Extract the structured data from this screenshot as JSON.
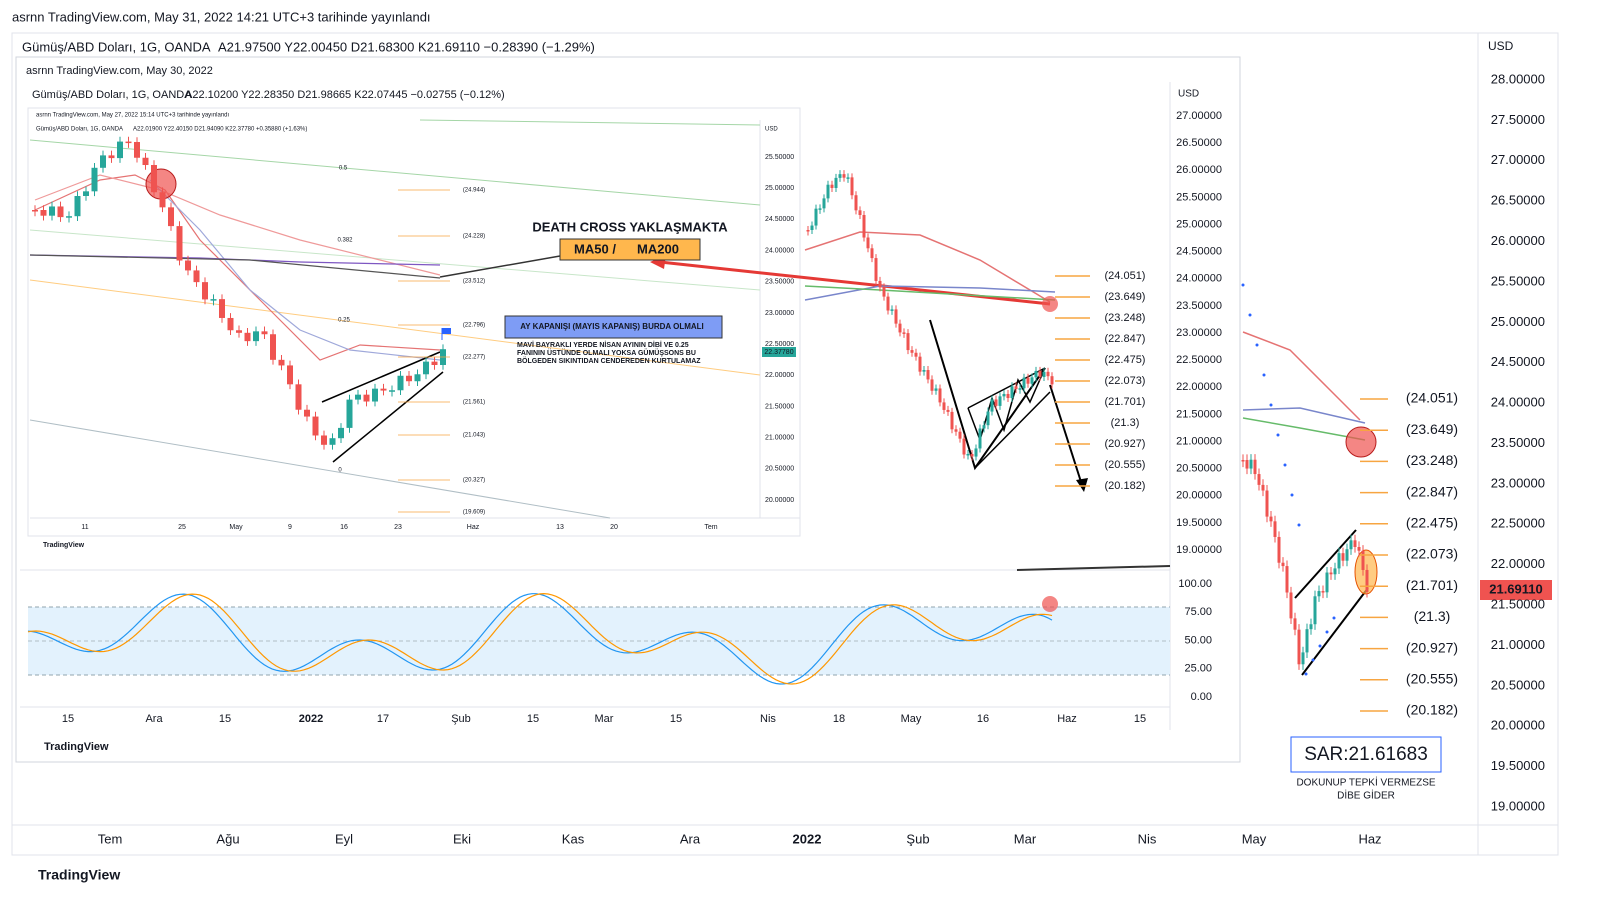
{
  "brand": "TradingView",
  "outer": {
    "published": "asrnn TradingView.com, May 31, 2022 14:21 UTC+3 tarihinde yayınlandı",
    "symbol": "Gümüş/ABD Doları, 1G, OANDA",
    "ohlc": "A21.97500  Y22.00450  D21.68300  K21.69110  −0.28390 (−1.29%)",
    "currency": "USD",
    "price_ticks": [
      "28.00000",
      "27.50000",
      "27.00000",
      "26.50000",
      "26.00000",
      "25.50000",
      "25.00000",
      "24.50000",
      "24.00000",
      "23.50000",
      "23.00000",
      "22.50000",
      "22.00000",
      "21.50000",
      "21.00000",
      "20.50000",
      "20.00000",
      "19.50000",
      "19.00000"
    ],
    "last_price": "21.69110",
    "fib_levels": [
      "(24.051)",
      "(23.649)",
      "(23.248)",
      "(22.847)",
      "(22.475)",
      "(22.073)",
      "(21.701)",
      "(21.3)",
      "(20.927)",
      "(20.555)",
      "(20.182)"
    ],
    "time_ticks": [
      "Tem",
      "Ağu",
      "Eyl",
      "Eki",
      "Kas",
      "Ara",
      "2022",
      "Şub",
      "Mar",
      "Nis",
      "May",
      "Haz"
    ],
    "sar": "SAR:21.61683",
    "note": [
      "DOKUNUP TEPKİ VERMEZSE",
      "DİBE GİDER"
    ]
  },
  "middle": {
    "published": "asrnn TradingView.com, May 30, 2022",
    "symbol": "Gümüş/ABD Doları, 1G, OANDA",
    "ohlc": "A22.10200  Y22.28350  D21.98665  K22.07445  −0.02755 (−0.12%)",
    "currency": "USD",
    "price_ticks": [
      "27.00000",
      "26.50000",
      "26.00000",
      "25.50000",
      "25.00000",
      "24.50000",
      "24.00000",
      "23.50000",
      "23.00000",
      "22.50000",
      "22.00000",
      "21.50000",
      "21.00000",
      "20.50000",
      "20.00000",
      "19.50000",
      "19.00000"
    ],
    "fib_levels": [
      "(24.051)",
      "(23.649)",
      "(23.248)",
      "(22.847)",
      "(22.475)",
      "(22.073)",
      "(21.701)",
      "(21.3)",
      "(20.927)",
      "(20.555)",
      "(20.182)"
    ],
    "stoch_ticks": [
      "100.00",
      "75.00",
      "50.00",
      "25.00",
      "0.00"
    ],
    "time_ticks": [
      "15",
      "Ara",
      "15",
      "2022",
      "17",
      "Şub",
      "15",
      "Mar",
      "15",
      "Nis",
      "18",
      "May",
      "16",
      "Haz",
      "15"
    ],
    "death_cross": "DEATH CROSS YAKLAŞMAKTA",
    "ma50": "MA50 /",
    "ma200": "MA200",
    "month_close": "AY KAPANIŞI (MAYIS KAPANIŞ) BURDA OLMALI",
    "comment": [
      "MAVİ BAYRAKLI YERDE NİSAN AYININ DİBİ VE 0.25",
      "FANININ ÜSTÜNDE OLMALI YOKSA GÜMÜŞSONS BU",
      "BÖLGEDEN SIKINTIDAN CENDEREDEN KURTULAMAZ"
    ]
  },
  "inner": {
    "published": "asrnn TradingView.com, May 27, 2022 15:14 UTC+3 tarihinde yayınlandı",
    "symbol": "Gümüş/ABD Doları, 1G, OANDA",
    "ohlc": "A22.01900  Y22.40150  D21.94090  K22.37780  +0.35880 (+1.63%)",
    "currency": "USD",
    "price_ticks": [
      "25.50000",
      "25.00000",
      "24.50000",
      "24.00000",
      "23.50000",
      "23.00000",
      "22.50000",
      "22.00000",
      "21.50000",
      "21.00000",
      "20.50000",
      "20.00000"
    ],
    "last_price": "22.37780",
    "fib_levels": [
      "(24.944)",
      "(24.228)",
      "(23.512)",
      "(22.796)",
      "(22.277)",
      "(21.561)",
      "(21.043)",
      "(20.327)",
      "(19.609)"
    ],
    "fib_ratios": [
      "0.5",
      "0.382",
      "0.25",
      "0"
    ],
    "time_ticks": [
      "11",
      "25",
      "May",
      "9",
      "16",
      "23",
      "Haz",
      "13",
      "20",
      "Tem"
    ]
  }
}
